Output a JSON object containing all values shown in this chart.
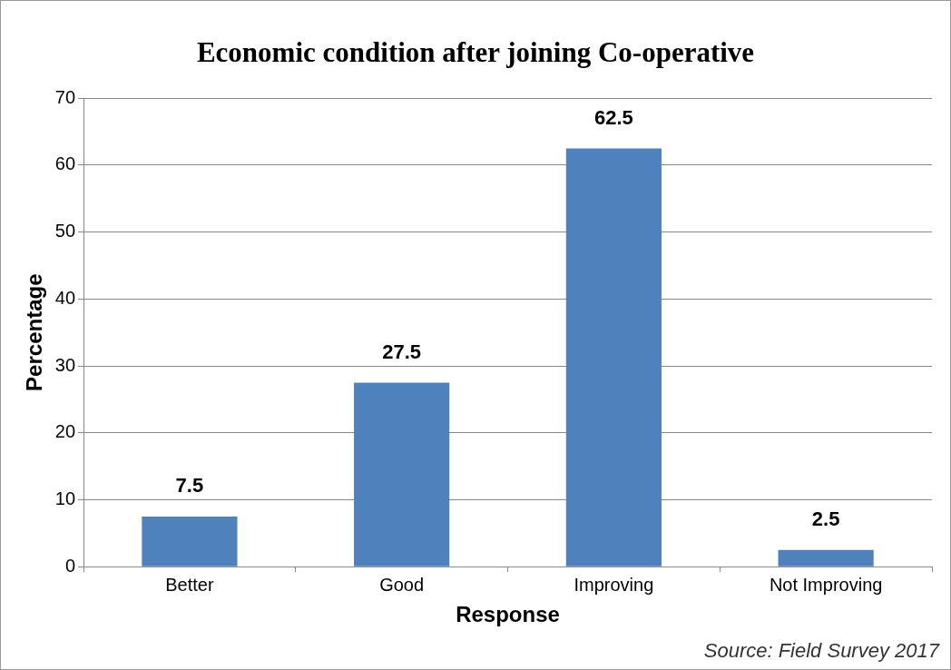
{
  "chart_data": {
    "type": "bar",
    "title": "Economic condition after joining Co-operative",
    "xlabel": "Response",
    "ylabel": "Percentage",
    "categories": [
      "Better",
      "Good",
      "Improving",
      "Not Improving"
    ],
    "values": [
      7.5,
      27.5,
      62.5,
      2.5
    ],
    "color": "#4f81bd",
    "ylim": [
      0,
      70
    ],
    "yticks": [
      0,
      10,
      20,
      30,
      40,
      50,
      60,
      70
    ],
    "grid": "y",
    "data_labels": true,
    "annotations": [
      "Source: Field Survey 2017"
    ]
  }
}
